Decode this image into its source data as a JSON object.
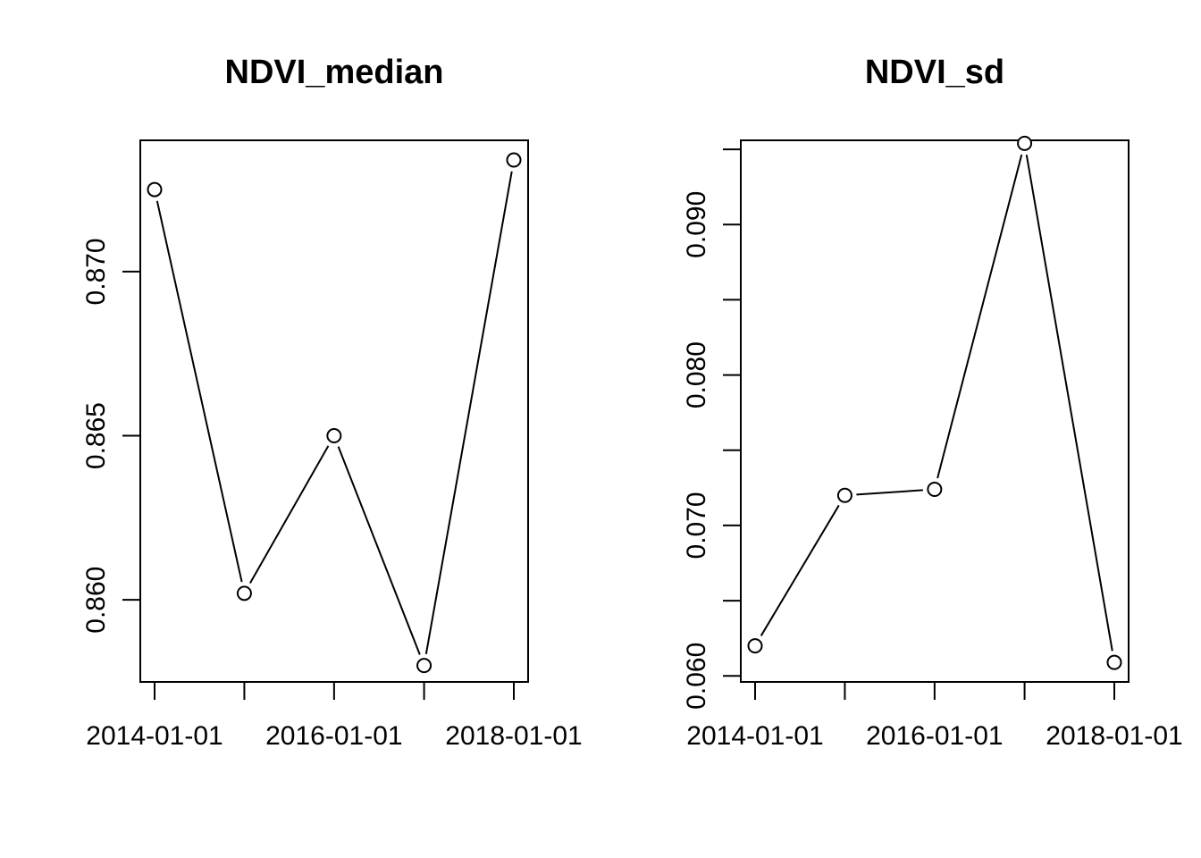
{
  "chart_data": [
    {
      "type": "line",
      "title": "NDVI_median",
      "xlabel": "",
      "ylabel": "",
      "x": [
        "2014-01-01",
        "2015-01-01",
        "2016-01-01",
        "2017-01-01",
        "2018-01-01"
      ],
      "values": [
        0.8725,
        0.8602,
        0.865,
        0.858,
        0.8734
      ],
      "xlim": [
        "2014-01-01",
        "2018-01-01"
      ],
      "ylim": [
        0.8575,
        0.874
      ],
      "x_ticks": [
        "2014-01-01",
        "2015-01-01",
        "2016-01-01",
        "2017-01-01",
        "2018-01-01"
      ],
      "x_tick_labels": [
        "2014-01-01",
        "",
        "2016-01-01",
        "",
        "2018-01-01"
      ],
      "y_ticks": [
        0.86,
        0.865,
        0.87
      ],
      "y_tick_labels": [
        "0.860",
        "0.865",
        "0.870"
      ],
      "marker": "open-circle",
      "grid": false
    },
    {
      "type": "line",
      "title": "NDVI_sd",
      "xlabel": "",
      "ylabel": "",
      "x": [
        "2014-01-01",
        "2015-01-01",
        "2016-01-01",
        "2017-01-01",
        "2018-01-01"
      ],
      "values": [
        0.062,
        0.072,
        0.0724,
        0.0954,
        0.0609
      ],
      "xlim": [
        "2014-01-01",
        "2018-01-01"
      ],
      "ylim": [
        0.0596,
        0.0956
      ],
      "x_ticks": [
        "2014-01-01",
        "2015-01-01",
        "2016-01-01",
        "2017-01-01",
        "2018-01-01"
      ],
      "x_tick_labels": [
        "2014-01-01",
        "",
        "2016-01-01",
        "",
        "2018-01-01"
      ],
      "y_ticks": [
        0.06,
        0.065,
        0.07,
        0.075,
        0.08,
        0.085,
        0.09,
        0.095
      ],
      "y_tick_labels": [
        "0.060",
        "",
        "0.070",
        "",
        "0.080",
        "",
        "0.090",
        ""
      ],
      "marker": "open-circle",
      "grid": false
    }
  ]
}
